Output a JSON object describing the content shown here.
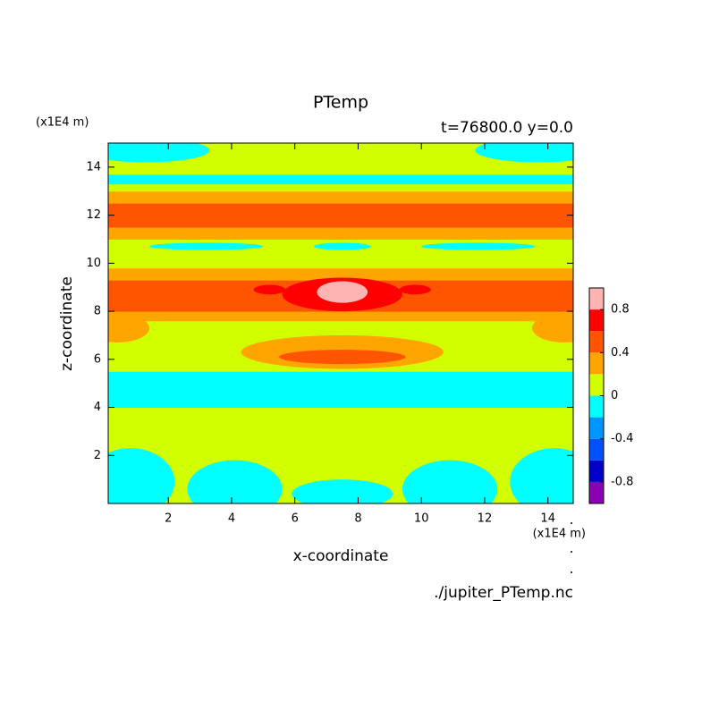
{
  "chart_data": {
    "type": "contour",
    "title": "PTemp",
    "subtitle": "t=76800.0 y=0.0",
    "x_label": "x-coordinate",
    "y_label": "z-coordinate",
    "x_unit": "(x1E4 m)",
    "y_unit": "(x1E4 m)",
    "source": "./jupiter_PTemp.nc",
    "xlim": [
      0.1,
      14.8
    ],
    "ylim": [
      0,
      15
    ],
    "xticks": [
      2,
      4,
      6,
      8,
      10,
      12,
      14
    ],
    "yticks": [
      2,
      4,
      6,
      8,
      10,
      12,
      14
    ],
    "levels": [
      -1,
      -0.8,
      -0.6,
      -0.4,
      -0.2,
      0,
      0.2,
      0.4,
      0.6,
      0.8,
      1
    ],
    "colors": [
      "#8c00b4",
      "#0000c8",
      "#0050ff",
      "#0096ff",
      "#00ffff",
      "#d2ff00",
      "#ffa500",
      "#ff5500",
      "#ff0000",
      "#ffb4b4"
    ],
    "colorbar_ticks": [
      -0.8,
      -0.4,
      0,
      0.4,
      0.8
    ],
    "strips": [
      {
        "z": [
          0,
          2.3
        ],
        "value": 0.1
      },
      {
        "z": [
          2.3,
          4.0
        ],
        "value": 0.1
      },
      {
        "z": [
          4.0,
          5.5
        ],
        "value": -0.1
      },
      {
        "z": [
          5.5,
          6.8
        ],
        "value": 0.1
      },
      {
        "z": [
          6.8,
          7.6
        ],
        "value": 0.1
      },
      {
        "z": [
          7.6,
          8.0
        ],
        "value": 0.3
      },
      {
        "z": [
          8.0,
          9.3
        ],
        "value": 0.5
      },
      {
        "z": [
          9.3,
          9.8
        ],
        "value": 0.3
      },
      {
        "z": [
          9.8,
          10.6
        ],
        "value": 0.1
      },
      {
        "z": [
          10.6,
          11.0
        ],
        "value": 0.1
      },
      {
        "z": [
          11.0,
          11.5
        ],
        "value": 0.3
      },
      {
        "z": [
          11.5,
          12.5
        ],
        "value": 0.5
      },
      {
        "z": [
          12.5,
          13.0
        ],
        "value": 0.3
      },
      {
        "z": [
          13.0,
          13.3
        ],
        "value": 0.1
      },
      {
        "z": [
          13.3,
          13.7
        ],
        "value": -0.1
      },
      {
        "z": [
          13.7,
          14.3
        ],
        "value": 0.1
      },
      {
        "z": [
          14.3,
          15
        ],
        "value": 0.1
      }
    ],
    "blobs": [
      {
        "x": 0.8,
        "z": 0.9,
        "rx": 1.4,
        "rz": 1.4,
        "value": -0.1
      },
      {
        "x": 4.1,
        "z": 0.6,
        "rx": 1.5,
        "rz": 1.2,
        "value": -0.1
      },
      {
        "x": 7.5,
        "z": 0.4,
        "rx": 1.6,
        "rz": 0.6,
        "value": -0.1
      },
      {
        "x": 10.9,
        "z": 0.6,
        "rx": 1.5,
        "rz": 1.2,
        "value": -0.1
      },
      {
        "x": 14.2,
        "z": 0.9,
        "rx": 1.4,
        "rz": 1.4,
        "value": -0.1
      },
      {
        "x": 7.5,
        "z": 6.3,
        "rx": 3.2,
        "rz": 0.7,
        "value": 0.3
      },
      {
        "x": 7.5,
        "z": 6.1,
        "rx": 2.0,
        "rz": 0.3,
        "value": 0.5
      },
      {
        "x": 0.4,
        "z": 7.3,
        "rx": 1.0,
        "rz": 0.6,
        "value": 0.3
      },
      {
        "x": 14.5,
        "z": 7.3,
        "rx": 1.0,
        "rz": 0.6,
        "value": 0.3
      },
      {
        "x": 7.5,
        "z": 8.7,
        "rx": 1.9,
        "rz": 0.7,
        "value": 0.7
      },
      {
        "x": 5.2,
        "z": 8.9,
        "rx": 0.5,
        "rz": 0.2,
        "value": 0.7
      },
      {
        "x": 9.8,
        "z": 8.9,
        "rx": 0.5,
        "rz": 0.2,
        "value": 0.7
      },
      {
        "x": 7.5,
        "z": 8.8,
        "rx": 0.8,
        "rz": 0.45,
        "value": 0.9
      },
      {
        "x": 3.2,
        "z": 10.7,
        "rx": 1.8,
        "rz": 0.15,
        "value": -0.1
      },
      {
        "x": 11.8,
        "z": 10.7,
        "rx": 1.8,
        "rz": 0.15,
        "value": -0.1
      },
      {
        "x": 7.5,
        "z": 10.7,
        "rx": 0.9,
        "rz": 0.15,
        "value": -0.1
      },
      {
        "x": 1.3,
        "z": 14.7,
        "rx": 2.0,
        "rz": 0.5,
        "value": -0.1
      },
      {
        "x": 13.7,
        "z": 14.7,
        "rx": 2.0,
        "rz": 0.5,
        "value": -0.1
      }
    ]
  }
}
